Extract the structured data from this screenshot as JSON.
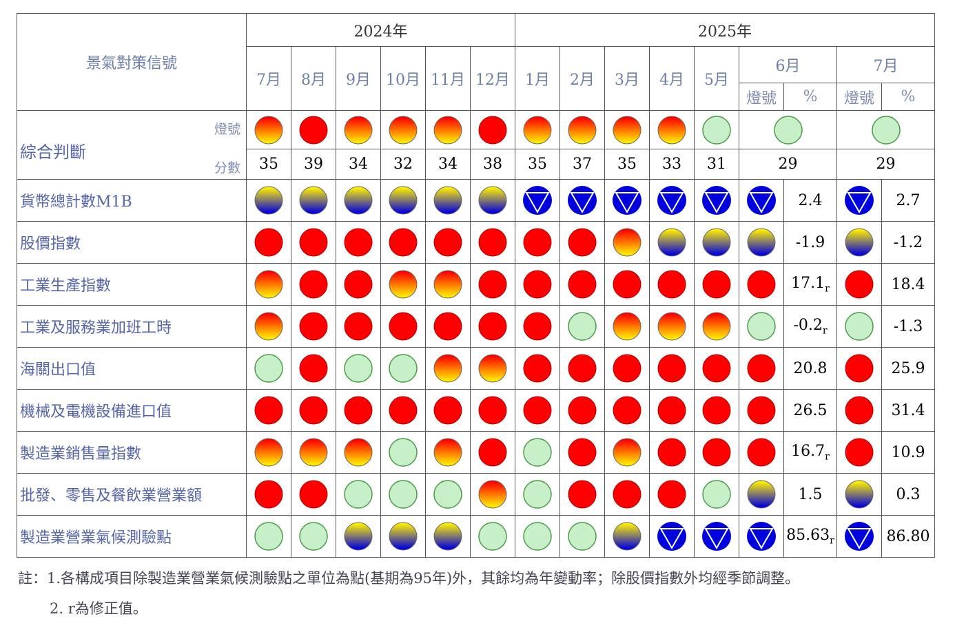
{
  "header": {
    "title": "景氣對策信號",
    "years": [
      "2024年",
      "2025年"
    ],
    "months_2024": [
      "7月",
      "8月",
      "9月",
      "10月",
      "11月",
      "12月"
    ],
    "months_2025": [
      "1月",
      "2月",
      "3月",
      "4月",
      "5月"
    ],
    "june": "6月",
    "july": "7月",
    "sub_signal": "燈號",
    "sub_pct": "%"
  },
  "composite": {
    "label": "綜合判斷",
    "signal_label": "燈號",
    "score_label": "分數",
    "signals": [
      "yellow-red",
      "red",
      "yellow-red",
      "yellow-red",
      "yellow-red",
      "red",
      "yellow-red",
      "yellow-red",
      "yellow-red",
      "yellow-red",
      "green",
      "green",
      "green"
    ],
    "scores": [
      "35",
      "39",
      "34",
      "32",
      "34",
      "38",
      "35",
      "37",
      "35",
      "33",
      "31",
      "29",
      "29"
    ]
  },
  "rows": [
    {
      "label": "貨幣總計數M1B",
      "signals": [
        "yellow-blue",
        "yellow-blue",
        "yellow-blue",
        "yellow-blue",
        "yellow-blue",
        "yellow-blue",
        "blue",
        "blue",
        "blue",
        "blue",
        "blue",
        "blue",
        "blue"
      ],
      "pct_jun": "2.4",
      "rev_jun": "",
      "pct_jul": "2.7"
    },
    {
      "label": "股價指數",
      "signals": [
        "red",
        "red",
        "red",
        "red",
        "red",
        "red",
        "red",
        "red",
        "yellow-red",
        "yellow-blue",
        "yellow-blue",
        "yellow-blue",
        "yellow-blue"
      ],
      "pct_jun": "-1.9",
      "rev_jun": "",
      "pct_jul": "-1.2"
    },
    {
      "label": "工業生產指數",
      "signals": [
        "yellow-red",
        "red",
        "red",
        "yellow-red",
        "yellow-red",
        "red",
        "red",
        "red",
        "red",
        "red",
        "red",
        "red",
        "red"
      ],
      "pct_jun": "17.1",
      "rev_jun": "r",
      "pct_jul": "18.4"
    },
    {
      "label": "工業及服務業加班工時",
      "signals": [
        "yellow-red",
        "red",
        "red",
        "red",
        "red",
        "red",
        "red",
        "green",
        "yellow-red",
        "yellow-red",
        "yellow-red",
        "green",
        "green"
      ],
      "pct_jun": "-0.2",
      "rev_jun": "r",
      "pct_jul": "-1.3"
    },
    {
      "label": "海關出口值",
      "signals": [
        "green",
        "red",
        "green",
        "green",
        "yellow-red",
        "yellow-red",
        "red",
        "red",
        "red",
        "red",
        "red",
        "red",
        "red"
      ],
      "pct_jun": "20.8",
      "rev_jun": "",
      "pct_jul": "25.9"
    },
    {
      "label": "機械及電機設備進口值",
      "signals": [
        "red",
        "red",
        "red",
        "red",
        "red",
        "red",
        "red",
        "red",
        "red",
        "red",
        "red",
        "red",
        "red"
      ],
      "pct_jun": "26.5",
      "rev_jun": "",
      "pct_jul": "31.4"
    },
    {
      "label": "製造業銷售量指數",
      "signals": [
        "yellow-red",
        "yellow-red",
        "yellow-red",
        "green",
        "yellow-red",
        "red",
        "green",
        "red",
        "yellow-red",
        "red",
        "red",
        "red",
        "red"
      ],
      "pct_jun": "16.7",
      "rev_jun": "r",
      "pct_jul": "10.9"
    },
    {
      "label": "批發、零售及餐飲業營業額",
      "signals": [
        "red",
        "red",
        "green",
        "green",
        "green",
        "yellow-red",
        "green",
        "red",
        "red",
        "red",
        "green",
        "yellow-blue",
        "yellow-blue"
      ],
      "pct_jun": "1.5",
      "rev_jun": "",
      "pct_jul": "0.3"
    },
    {
      "label": "製造業營業氣候測驗點",
      "signals": [
        "green",
        "green",
        "yellow-blue",
        "yellow-blue",
        "yellow-blue",
        "green",
        "green",
        "green",
        "yellow-blue",
        "blue",
        "blue",
        "blue",
        "blue"
      ],
      "pct_jun": "85.63",
      "rev_jun": "r",
      "pct_jul": "86.80"
    }
  ],
  "notes": {
    "line1": "註：1.各構成項目除製造業營業氣候測驗點之單位為點(基期為95年)外，其餘均為年變動率；除股價指數外均經季節調整。",
    "line2": "2. r為修正值。"
  },
  "colors": {
    "red": "#ff0000",
    "yellow": "#ffee00",
    "blue": "#0000dd",
    "green_fill": "#c8f0c8",
    "green_stroke": "#4a9a4a",
    "border": "#555555"
  }
}
